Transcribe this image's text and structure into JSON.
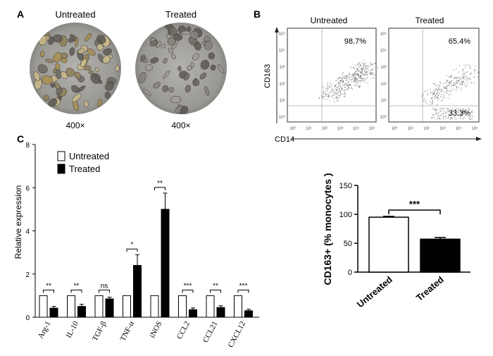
{
  "panels": {
    "a": "A",
    "b": "B",
    "c": "C"
  },
  "micrographs": [
    {
      "label": "Untreated",
      "magnification": "400×"
    },
    {
      "label": "Treated",
      "magnification": "400×"
    }
  ],
  "flow": {
    "y_label": "CD163",
    "x_label": "CD14",
    "tick_labels": [
      "10⁰",
      "10¹",
      "10²",
      "10³",
      "10⁴",
      "10⁵"
    ],
    "plots": [
      {
        "label": "Untreated",
        "quadrants": [
          "98.7%"
        ]
      },
      {
        "label": "Treated",
        "quadrants": [
          "65.4%",
          "33.3%"
        ]
      }
    ]
  },
  "chart_data": [
    {
      "type": "bar",
      "ylabel": "Relative expression",
      "ylim": [
        0,
        8
      ],
      "yticks": [
        0,
        2,
        4,
        6,
        8
      ],
      "grid": false,
      "legend_position": "top-left",
      "categories": [
        "Arg-1",
        "IL-10",
        "TGF-β",
        "TNF-α",
        "iNOS",
        "CCL2",
        "CCL21",
        "CXCL12"
      ],
      "series": [
        {
          "name": "Untreated",
          "color": "#ffffff",
          "values": [
            1,
            1,
            1,
            1,
            1,
            1,
            1,
            1
          ]
        },
        {
          "name": "Treated",
          "color": "#000000",
          "values": [
            0.42,
            0.5,
            0.85,
            2.4,
            5.0,
            0.35,
            0.45,
            0.3
          ],
          "errors": [
            0.08,
            0.1,
            0.08,
            0.5,
            0.75,
            0.08,
            0.08,
            0.07
          ]
        }
      ],
      "significance": [
        "**",
        "**",
        "ns",
        "*",
        "**",
        "***",
        "**",
        "***"
      ]
    },
    {
      "type": "bar",
      "ylabel": "CD163+ (% monocytes )",
      "ylim": [
        0,
        150
      ],
      "yticks": [
        0,
        50,
        100,
        150
      ],
      "grid": false,
      "categories": [
        "Untreated",
        "Treated"
      ],
      "values": [
        95,
        57
      ],
      "errors": [
        1.5,
        3
      ],
      "colors": [
        "#ffffff",
        "#000000"
      ],
      "significance": "***"
    }
  ]
}
